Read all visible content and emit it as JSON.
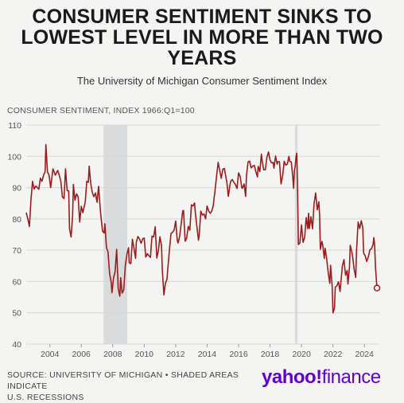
{
  "header": {
    "title_line1": "CONSUMER SENTIMENT SINKS TO",
    "title_line2": "LOWEST LEVEL IN MORE THAN TWO",
    "title_line3": "YEARS",
    "subtitle": "The University of Michigan Consumer Sentiment Index"
  },
  "footer": {
    "source_line1": "SOURCE: UNIVERSITY OF MICHIGAN • SHADED AREAS INDICATE",
    "source_line2": "U.S. RECESSIONS",
    "logo_text": "yahoo!",
    "logo_suffix": "finance"
  },
  "colors": {
    "line": "#9b1c1c",
    "recession": "#d9dbdd",
    "grid": "#d6d6d6",
    "brand": "#6001d2"
  },
  "chart_data": {
    "type": "line",
    "ylabel": "CONSUMER SENTIMENT, INDEX 1966:Q1=100",
    "ylim": [
      40,
      110
    ],
    "yticks": [
      40,
      50,
      60,
      70,
      80,
      90,
      100,
      110
    ],
    "xlim": [
      2003.0,
      2025.5
    ],
    "xticks": [
      "2004",
      "2006",
      "2008",
      "2010",
      "2012",
      "2014",
      "2016",
      "2018",
      "2020",
      "2022",
      "2024"
    ],
    "grid": true,
    "recessions": [
      [
        2007.92,
        2009.42
      ],
      [
        2020.08,
        2020.25
      ]
    ],
    "series": [
      {
        "points": [
          [
            2003.0,
            82
          ],
          [
            2003.1,
            80
          ],
          [
            2003.2,
            77.6
          ],
          [
            2003.3,
            86
          ],
          [
            2003.4,
            92
          ],
          [
            2003.5,
            89.5
          ],
          [
            2003.6,
            90.5
          ],
          [
            2003.8,
            89.5
          ],
          [
            2003.9,
            93
          ],
          [
            2004.0,
            92
          ],
          [
            2004.1,
            94
          ],
          [
            2004.2,
            95
          ],
          [
            2004.25,
            103.8
          ],
          [
            2004.35,
            95
          ],
          [
            2004.45,
            94
          ],
          [
            2004.55,
            90
          ],
          [
            2004.7,
            96
          ],
          [
            2004.85,
            94
          ],
          [
            2005.0,
            95.5
          ],
          [
            2005.1,
            94
          ],
          [
            2005.2,
            92
          ],
          [
            2005.3,
            87
          ],
          [
            2005.4,
            86.5
          ],
          [
            2005.5,
            96
          ],
          [
            2005.6,
            89
          ],
          [
            2005.7,
            89
          ],
          [
            2005.75,
            76.9
          ],
          [
            2005.85,
            74.2
          ],
          [
            2005.95,
            81
          ],
          [
            2006.0,
            91
          ],
          [
            2006.1,
            86
          ],
          [
            2006.2,
            88
          ],
          [
            2006.3,
            87
          ],
          [
            2006.4,
            79
          ],
          [
            2006.5,
            84
          ],
          [
            2006.6,
            82
          ],
          [
            2006.75,
            85.4
          ],
          [
            2006.85,
            92
          ],
          [
            2006.95,
            91.7
          ],
          [
            2007.0,
            96.9
          ],
          [
            2007.1,
            91.3
          ],
          [
            2007.2,
            88.4
          ],
          [
            2007.3,
            87.1
          ],
          [
            2007.4,
            88.3
          ],
          [
            2007.5,
            85.3
          ],
          [
            2007.6,
            90.4
          ],
          [
            2007.7,
            83.4
          ],
          [
            2007.75,
            80.9
          ],
          [
            2007.85,
            76.1
          ],
          [
            2007.95,
            75.5
          ],
          [
            2008.0,
            78.4
          ],
          [
            2008.1,
            70.8
          ],
          [
            2008.2,
            69.5
          ],
          [
            2008.3,
            62.6
          ],
          [
            2008.4,
            59.8
          ],
          [
            2008.45,
            56.4
          ],
          [
            2008.55,
            61.2
          ],
          [
            2008.65,
            63
          ],
          [
            2008.75,
            70.3
          ],
          [
            2008.85,
            57.6
          ],
          [
            2008.95,
            55.3
          ],
          [
            2009.0,
            61.2
          ],
          [
            2009.1,
            56.3
          ],
          [
            2009.2,
            57.3
          ],
          [
            2009.3,
            65.1
          ],
          [
            2009.4,
            68.7
          ],
          [
            2009.5,
            70.8
          ],
          [
            2009.55,
            66
          ],
          [
            2009.65,
            65.7
          ],
          [
            2009.75,
            73.5
          ],
          [
            2009.85,
            70.6
          ],
          [
            2009.95,
            67.4
          ],
          [
            2010.0,
            72.5
          ],
          [
            2010.1,
            74.4
          ],
          [
            2010.2,
            73.6
          ],
          [
            2010.3,
            72.2
          ],
          [
            2010.4,
            73.6
          ],
          [
            2010.5,
            73.9
          ],
          [
            2010.6,
            67.8
          ],
          [
            2010.7,
            68.9
          ],
          [
            2010.8,
            68.2
          ],
          [
            2010.9,
            67.7
          ],
          [
            2010.95,
            71.6
          ],
          [
            2011.0,
            74.5
          ],
          [
            2011.1,
            74.2
          ],
          [
            2011.2,
            77.5
          ],
          [
            2011.3,
            67.5
          ],
          [
            2011.4,
            69.8
          ],
          [
            2011.5,
            74.3
          ],
          [
            2011.6,
            71.5
          ],
          [
            2011.65,
            63.7
          ],
          [
            2011.75,
            55.7
          ],
          [
            2011.85,
            59.5
          ],
          [
            2011.95,
            60.8
          ],
          [
            2012.0,
            64.1
          ],
          [
            2012.1,
            69.9
          ],
          [
            2012.2,
            75.3
          ],
          [
            2012.3,
            75.7
          ],
          [
            2012.4,
            76.4
          ],
          [
            2012.5,
            79.3
          ],
          [
            2012.6,
            73.2
          ],
          [
            2012.65,
            72.3
          ],
          [
            2012.75,
            74.3
          ],
          [
            2012.85,
            78.3
          ],
          [
            2012.95,
            82.6
          ],
          [
            2013.0,
            82.7
          ],
          [
            2013.1,
            72.9
          ],
          [
            2013.2,
            73.8
          ],
          [
            2013.3,
            77.6
          ],
          [
            2013.4,
            76.4
          ],
          [
            2013.5,
            84.5
          ],
          [
            2013.6,
            84.1
          ],
          [
            2013.7,
            85.1
          ],
          [
            2013.75,
            82.1
          ],
          [
            2013.85,
            77.5
          ],
          [
            2013.95,
            73.2
          ],
          [
            2014.0,
            75.1
          ],
          [
            2014.1,
            82.5
          ],
          [
            2014.2,
            81.2
          ],
          [
            2014.3,
            81.6
          ],
          [
            2014.4,
            80
          ],
          [
            2014.5,
            84.1
          ],
          [
            2014.6,
            82.5
          ],
          [
            2014.7,
            81.8
          ],
          [
            2014.8,
            82.5
          ],
          [
            2014.9,
            84.6
          ],
          [
            2014.95,
            86.9
          ],
          [
            2015.0,
            88.8
          ],
          [
            2015.1,
            93.6
          ],
          [
            2015.2,
            98.1
          ],
          [
            2015.3,
            95.4
          ],
          [
            2015.4,
            93
          ],
          [
            2015.5,
            95.9
          ],
          [
            2015.6,
            96.1
          ],
          [
            2015.7,
            93.1
          ],
          [
            2015.75,
            91.9
          ],
          [
            2015.85,
            87.2
          ],
          [
            2015.95,
            90.7
          ],
          [
            2016.0,
            92
          ],
          [
            2016.1,
            92.6
          ],
          [
            2016.2,
            91.7
          ],
          [
            2016.3,
            91
          ],
          [
            2016.4,
            89.7
          ],
          [
            2016.5,
            94.7
          ],
          [
            2016.6,
            93.5
          ],
          [
            2016.7,
            90
          ],
          [
            2016.75,
            89.8
          ],
          [
            2016.85,
            91.2
          ],
          [
            2016.95,
            87.2
          ],
          [
            2017.0,
            93.8
          ],
          [
            2017.1,
            98.2
          ],
          [
            2017.2,
            98.5
          ],
          [
            2017.3,
            96.3
          ],
          [
            2017.4,
            96.9
          ],
          [
            2017.5,
            97.1
          ],
          [
            2017.6,
            95
          ],
          [
            2017.7,
            93.4
          ],
          [
            2017.75,
            96.8
          ],
          [
            2017.85,
            95.1
          ],
          [
            2017.95,
            100.7
          ],
          [
            2018.0,
            98.5
          ],
          [
            2018.1,
            95.7
          ],
          [
            2018.2,
            95.7
          ],
          [
            2018.3,
            99.7
          ],
          [
            2018.4,
            101.4
          ],
          [
            2018.5,
            98.8
          ],
          [
            2018.6,
            97.9
          ],
          [
            2018.7,
            98
          ],
          [
            2018.75,
            96.2
          ],
          [
            2018.85,
            100.1
          ],
          [
            2018.95,
            97.5
          ],
          [
            2019.0,
            98.3
          ],
          [
            2019.1,
            98.3
          ],
          [
            2019.2,
            91.2
          ],
          [
            2019.3,
            93.8
          ],
          [
            2019.4,
            98.4
          ],
          [
            2019.5,
            97.2
          ],
          [
            2019.6,
            97.5
          ],
          [
            2019.7,
            100
          ],
          [
            2019.75,
            98.4
          ],
          [
            2019.85,
            98.2
          ],
          [
            2019.95,
            93.2
          ],
          [
            2020.0,
            89.8
          ],
          [
            2020.05,
            95.5
          ],
          [
            2020.1,
            96.8
          ],
          [
            2020.15,
            99.8
          ],
          [
            2020.2,
            101
          ],
          [
            2020.25,
            89.1
          ],
          [
            2020.3,
            71.8
          ],
          [
            2020.4,
            72.3
          ],
          [
            2020.5,
            78.1
          ],
          [
            2020.6,
            72.5
          ],
          [
            2020.7,
            74.1
          ],
          [
            2020.8,
            80.4
          ],
          [
            2020.9,
            76.9
          ],
          [
            2020.95,
            81.8
          ],
          [
            2021.0,
            76.9
          ],
          [
            2021.1,
            80.7
          ],
          [
            2021.2,
            76.8
          ],
          [
            2021.3,
            84.9
          ],
          [
            2021.4,
            88.3
          ],
          [
            2021.5,
            82.9
          ],
          [
            2021.6,
            85.5
          ],
          [
            2021.65,
            81.2
          ],
          [
            2021.7,
            70.3
          ],
          [
            2021.8,
            72.8
          ],
          [
            2021.85,
            71.7
          ],
          [
            2021.95,
            67.4
          ],
          [
            2022.0,
            70.6
          ],
          [
            2022.1,
            67.2
          ],
          [
            2022.2,
            62.8
          ],
          [
            2022.3,
            59.4
          ],
          [
            2022.35,
            65.2
          ],
          [
            2022.45,
            58.4
          ],
          [
            2022.5,
            50
          ],
          [
            2022.6,
            51.5
          ],
          [
            2022.65,
            58.2
          ],
          [
            2022.75,
            58.6
          ],
          [
            2022.85,
            59.9
          ],
          [
            2022.95,
            56.8
          ],
          [
            2023.0,
            59.7
          ],
          [
            2023.1,
            64.9
          ],
          [
            2023.2,
            67
          ],
          [
            2023.3,
            62
          ],
          [
            2023.4,
            63.5
          ],
          [
            2023.45,
            59.2
          ],
          [
            2023.55,
            64.4
          ],
          [
            2023.6,
            71.6
          ],
          [
            2023.7,
            69.4
          ],
          [
            2023.75,
            67.9
          ],
          [
            2023.85,
            63.8
          ],
          [
            2023.95,
            61.3
          ],
          [
            2024.0,
            69.7
          ],
          [
            2024.1,
            79
          ],
          [
            2024.2,
            76.9
          ],
          [
            2024.3,
            79.4
          ],
          [
            2024.4,
            77.2
          ],
          [
            2024.45,
            69.1
          ],
          [
            2024.55,
            68.2
          ],
          [
            2024.65,
            66.4
          ],
          [
            2024.75,
            67.9
          ],
          [
            2024.85,
            70.1
          ],
          [
            2024.95,
            70.5
          ],
          [
            2025.05,
            71.8
          ],
          [
            2025.1,
            74
          ],
          [
            2025.15,
            71.7
          ],
          [
            2025.2,
            64.7
          ],
          [
            2025.3,
            57.9
          ]
        ],
        "last_point": [
          2025.3,
          57.9
        ]
      }
    ]
  }
}
